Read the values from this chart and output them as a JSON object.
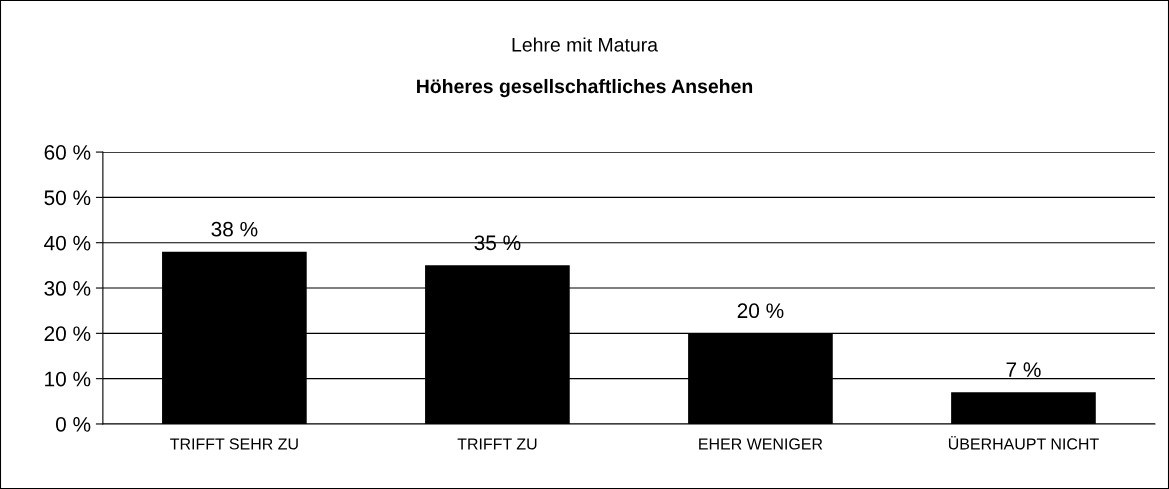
{
  "chart_data": {
    "type": "bar",
    "title": "Lehre mit Matura",
    "subtitle": "Höheres gesellschaftliches Ansehen",
    "categories": [
      "TRIFFT SEHR ZU",
      "TRIFFT ZU",
      "EHER WENIGER",
      "ÜBERHAUPT NICHT"
    ],
    "values": [
      38,
      35,
      20,
      7
    ],
    "color": "#000000",
    "data_labels": true,
    "value_labels": [
      "38 %",
      "35 %",
      "20 %",
      "7 %"
    ],
    "ylim": [
      0,
      60
    ],
    "yticks": [
      {
        "value": 0,
        "label": "0 %"
      },
      {
        "value": 10,
        "label": "10 %"
      },
      {
        "value": 20,
        "label": "20 %"
      },
      {
        "value": 30,
        "label": "30 %"
      },
      {
        "value": 40,
        "label": "40 %"
      },
      {
        "value": 50,
        "label": "50 %"
      },
      {
        "value": 60,
        "label": "60 %"
      }
    ],
    "grid": "y",
    "legend": false
  }
}
